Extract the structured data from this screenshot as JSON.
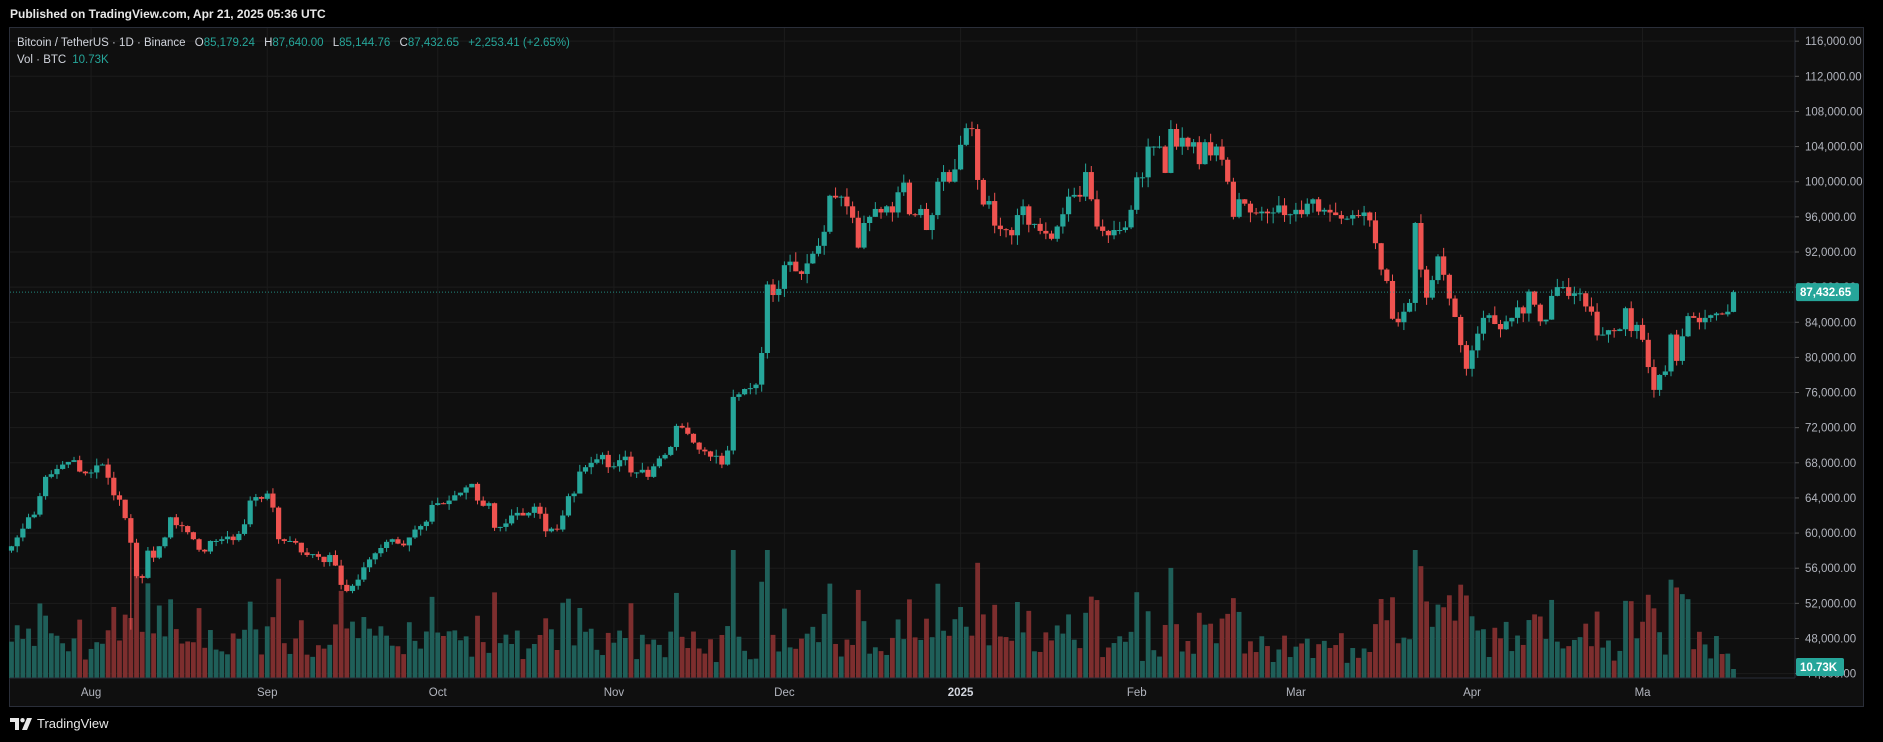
{
  "header": {
    "published": "Published on TradingView.com, Apr 21, 2025 05:36 UTC"
  },
  "legend": {
    "symbol": "Bitcoin / TetherUS · 1D · Binance",
    "o_label": "O",
    "o_value": "85,179.24",
    "h_label": "H",
    "h_value": "87,640.00",
    "l_label": "L",
    "l_value": "85,144.76",
    "c_label": "C",
    "c_value": "87,432.65",
    "change": "+2,253.41 (+2.65%)",
    "vol_label": "Vol · BTC",
    "vol_value": "10.73K"
  },
  "footer": {
    "brand": "TradingView",
    "logo_icon": "tradingview-logo-icon"
  },
  "colors": {
    "up": "#26a69a",
    "down": "#ef5350",
    "up_vol": "#1f5f59",
    "down_vol": "#7d2e2e"
  },
  "chart_data": {
    "type": "candlestick",
    "symbol": "Bitcoin / TetherUS",
    "interval": "1D",
    "exchange": "Binance",
    "price_axis": {
      "ticks": [
        "116,000.00",
        "112,000.00",
        "108,000.00",
        "104,000.00",
        "100,000.00",
        "96,000.00",
        "92,000.00",
        "88,000.00",
        "84,000.00",
        "80,000.00",
        "76,000.00",
        "72,000.00",
        "68,000.00",
        "64,000.00",
        "60,000.00",
        "56,000.00",
        "52,000.00",
        "48,000.00",
        "44,000.00"
      ],
      "range": [
        43500,
        117500
      ],
      "last_price_label": "87,432.65",
      "last_price": 87432.65,
      "volume_label": "10.73K"
    },
    "time_axis": {
      "labels": [
        "Aug",
        "Sep",
        "Oct",
        "Nov",
        "Dec",
        "2025",
        "Feb",
        "Mar",
        "Apr",
        "Ma"
      ],
      "start": "2024-07-18",
      "end": "2025-04-21"
    },
    "closes": [
      58500,
      59500,
      60500,
      61800,
      62100,
      64200,
      66400,
      66700,
      67300,
      67800,
      68100,
      68300,
      67000,
      66800,
      66900,
      67700,
      67800,
      66300,
      64300,
      63800,
      61700,
      58900,
      55100,
      54900,
      58000,
      57200,
      58500,
      59500,
      61800,
      60900,
      60800,
      60100,
      59300,
      58100,
      57900,
      59100,
      59100,
      59300,
      59600,
      59200,
      59900,
      61000,
      63700,
      64100,
      63900,
      64500,
      62900,
      59300,
      59100,
      59100,
      58900,
      57800,
      57500,
      57600,
      57300,
      56700,
      57500,
      56300,
      54100,
      53400,
      54000,
      54700,
      56100,
      57000,
      57700,
      58300,
      59000,
      59300,
      58800,
      58600,
      59500,
      60400,
      60800,
      61300,
      63200,
      63400,
      63300,
      63700,
      64300,
      64600,
      65200,
      65600,
      63700,
      63100,
      63400,
      60600,
      60700,
      61100,
      62000,
      62300,
      62000,
      62300,
      63000,
      62200,
      60200,
      60500,
      60400,
      62000,
      64200,
      64500,
      67000,
      67500,
      68000,
      68400,
      68900,
      67500,
      67600,
      68300,
      68700,
      66900,
      66900,
      67200,
      66400,
      67600,
      68500,
      68900,
      69800,
      72200,
      72000,
      71300,
      70300,
      69500,
      69300,
      68700,
      68800,
      67800,
      69400,
      75500,
      75800,
      76400,
      76500,
      76900,
      80500,
      88300,
      87100,
      87800,
      90500,
      90900,
      89800,
      89500,
      90700,
      91800,
      92700,
      94300,
      98400,
      98200,
      98300,
      97200,
      95900,
      92500,
      95300,
      96000,
      96900,
      96500,
      97200,
      96500,
      98800,
      99900,
      96300,
      96200,
      96900,
      94500,
      96200,
      100000,
      101100,
      100000,
      101400,
      104200,
      106100,
      106000,
      100200,
      97400,
      97800,
      95000,
      94600,
      94500,
      93900,
      96200,
      97200,
      95100,
      95200,
      94400,
      94100,
      93500,
      94900,
      96300,
      98300,
      98500,
      98300,
      101100,
      98000,
      94900,
      94400,
      93900,
      94500,
      94500,
      94800,
      96800,
      100500,
      100500,
      104000,
      104000,
      104000,
      101000,
      106000,
      104000,
      105000,
      104000,
      104500,
      102000,
      104500,
      103000,
      104000,
      102500,
      100000,
      96000,
      98000,
      97500,
      96500,
      96400,
      96600,
      96400,
      96500,
      97300,
      96200,
      96300,
      96800,
      96300,
      97500,
      98000,
      96600,
      96800,
      96500,
      96200,
      95800,
      95800,
      96200,
      96100,
      96500,
      95600,
      93000,
      90000,
      88700,
      84400,
      84000,
      85200,
      86200,
      95300,
      90000,
      86800,
      88800,
      91500,
      89400,
      86700,
      84600,
      81400,
      78700,
      80800,
      82700,
      84500,
      84800,
      83800,
      83200,
      84100,
      84500,
      85700,
      85000,
      87500,
      86000,
      84100,
      84300,
      87000,
      88000,
      88000,
      87000,
      87300,
      87300,
      85800,
      85200,
      82500,
      82600,
      83100,
      83000,
      83200,
      85600,
      83000,
      83700,
      82000,
      78900,
      76300,
      78000,
      78400,
      82600,
      79600,
      82400,
      84700,
      84500,
      84000,
      84500,
      84800,
      85000,
      84900,
      85200,
      87430
    ],
    "last_candle": {
      "open": 85179.24,
      "high": 87640.0,
      "low": 85144.76,
      "close": 87432.65,
      "change": 2253.41,
      "change_pct": 2.65,
      "volume": "10.73K"
    }
  }
}
